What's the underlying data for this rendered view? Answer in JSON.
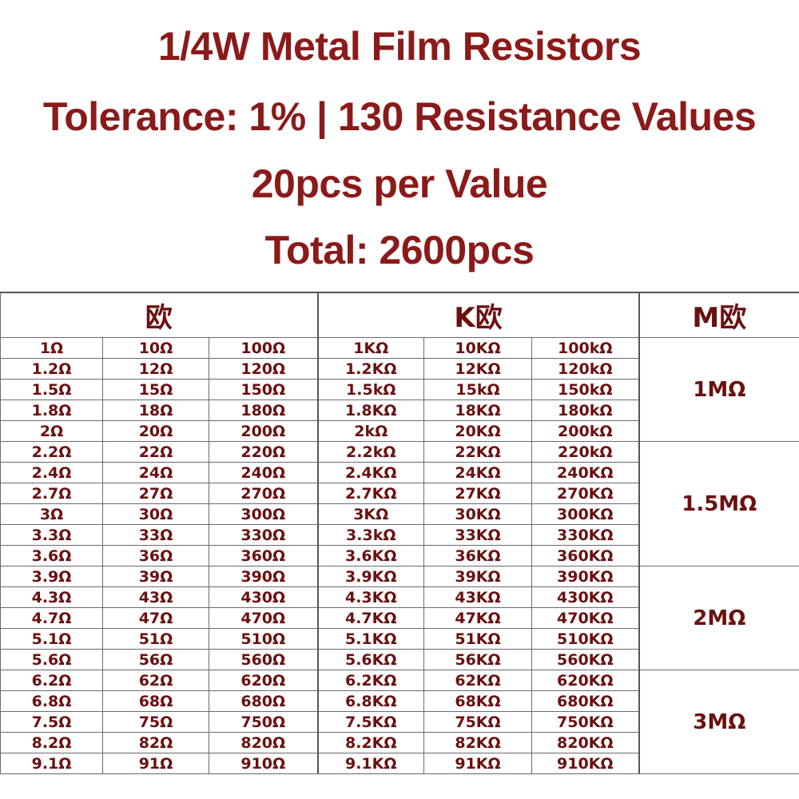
{
  "title": {
    "line1": "1/4W Metal Film Resistors",
    "line2": "Tolerance: 1% | 130 Resistance Values",
    "line3": "20pcs per Value",
    "line4": "Total: 2600pcs"
  },
  "table": {
    "headers": {
      "ohm": "欧",
      "kohm": "K欧",
      "mohm": "M欧"
    },
    "rows": [
      [
        "1Ω",
        "10Ω",
        "100Ω",
        "1KΩ",
        "10KΩ",
        "100kΩ"
      ],
      [
        "1.2Ω",
        "12Ω",
        "120Ω",
        "1.2KΩ",
        "12KΩ",
        "120kΩ"
      ],
      [
        "1.5Ω",
        "15Ω",
        "150Ω",
        "1.5kΩ",
        "15kΩ",
        "150kΩ"
      ],
      [
        "1.8Ω",
        "18Ω",
        "180Ω",
        "1.8KΩ",
        "18KΩ",
        "180kΩ"
      ],
      [
        "2Ω",
        "20Ω",
        "200Ω",
        "2kΩ",
        "20KΩ",
        "200kΩ"
      ],
      [
        "2.2Ω",
        "22Ω",
        "220Ω",
        "2.2kΩ",
        "22KΩ",
        "220kΩ"
      ],
      [
        "2.4Ω",
        "24Ω",
        "240Ω",
        "2.4KΩ",
        "24KΩ",
        "240KΩ"
      ],
      [
        "2.7Ω",
        "27Ω",
        "270Ω",
        "2.7KΩ",
        "27KΩ",
        "270KΩ"
      ],
      [
        "3Ω",
        "30Ω",
        "300Ω",
        "3KΩ",
        "30KΩ",
        "300KΩ"
      ],
      [
        "3.3Ω",
        "33Ω",
        "330Ω",
        "3.3kΩ",
        "33KΩ",
        "330KΩ"
      ],
      [
        "3.6Ω",
        "36Ω",
        "360Ω",
        "3.6KΩ",
        "36KΩ",
        "360KΩ"
      ],
      [
        "3.9Ω",
        "39Ω",
        "390Ω",
        "3.9KΩ",
        "39KΩ",
        "390KΩ"
      ],
      [
        "4.3Ω",
        "43Ω",
        "430Ω",
        "4.3KΩ",
        "43KΩ",
        "430KΩ"
      ],
      [
        "4.7Ω",
        "47Ω",
        "470Ω",
        "4.7KΩ",
        "47KΩ",
        "470KΩ"
      ],
      [
        "5.1Ω",
        "51Ω",
        "510Ω",
        "5.1KΩ",
        "51KΩ",
        "510KΩ"
      ],
      [
        "5.6Ω",
        "56Ω",
        "560Ω",
        "5.6KΩ",
        "56KΩ",
        "560KΩ"
      ],
      [
        "6.2Ω",
        "62Ω",
        "620Ω",
        "6.2KΩ",
        "62KΩ",
        "620KΩ"
      ],
      [
        "6.8Ω",
        "68Ω",
        "680Ω",
        "6.8KΩ",
        "68KΩ",
        "680KΩ"
      ],
      [
        "7.5Ω",
        "75Ω",
        "750Ω",
        "7.5KΩ",
        "75KΩ",
        "750KΩ"
      ],
      [
        "8.2Ω",
        "82Ω",
        "820Ω",
        "8.2KΩ",
        "82KΩ",
        "820KΩ"
      ],
      [
        "9.1Ω",
        "91Ω",
        "910Ω",
        "9.1KΩ",
        "91KΩ",
        "910KΩ"
      ]
    ],
    "mohm_values": [
      "1MΩ",
      "1.5MΩ",
      "2MΩ",
      "3MΩ"
    ]
  },
  "colors": {
    "title": "#8b1a1a",
    "cell_text": "#6b1010",
    "grid": "#6b6b6b",
    "background": "#ffffff"
  }
}
